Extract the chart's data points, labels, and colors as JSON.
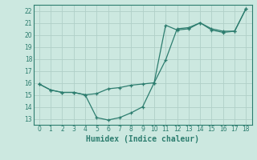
{
  "xlabel": "Humidex (Indice chaleur)",
  "line1_x": [
    0,
    1,
    2,
    3,
    4,
    5,
    6,
    7,
    8,
    9,
    10,
    11,
    12,
    13,
    14,
    15,
    16,
    17,
    18
  ],
  "line1_y": [
    15.9,
    15.4,
    15.2,
    15.2,
    15.0,
    13.1,
    12.9,
    13.1,
    13.5,
    14.0,
    16.0,
    17.9,
    20.5,
    20.6,
    21.0,
    20.5,
    20.3,
    20.3,
    22.2
  ],
  "line2_x": [
    0,
    1,
    2,
    3,
    4,
    5,
    6,
    7,
    8,
    9,
    10,
    11,
    12,
    13,
    14,
    15,
    16,
    17,
    18
  ],
  "line2_y": [
    15.9,
    15.4,
    15.2,
    15.2,
    15.0,
    15.1,
    15.5,
    15.6,
    15.8,
    15.9,
    16.0,
    20.8,
    20.4,
    20.5,
    21.0,
    20.4,
    20.2,
    20.3,
    22.2
  ],
  "line_color": "#2d7d6f",
  "bg_color": "#cce8e0",
  "grid_color": "#b0cfc8",
  "ylim": [
    12.5,
    22.5
  ],
  "xlim": [
    -0.5,
    18.5
  ],
  "yticks": [
    13,
    14,
    15,
    16,
    17,
    18,
    19,
    20,
    21,
    22
  ],
  "xticks": [
    0,
    1,
    2,
    3,
    4,
    5,
    6,
    7,
    8,
    9,
    10,
    11,
    12,
    13,
    14,
    15,
    16,
    17,
    18
  ],
  "tick_fontsize": 5.5,
  "xlabel_fontsize": 7
}
